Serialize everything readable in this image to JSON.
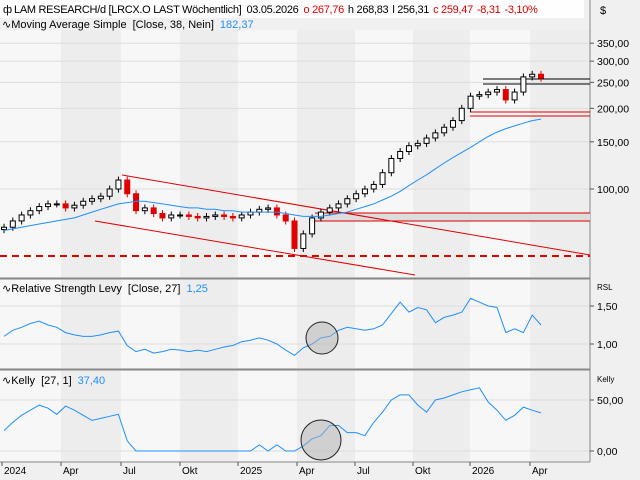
{
  "header": {
    "instrument": "LAM RESEARCH/d [LRCX.O LAST Wöchentlich]",
    "date": "03.05.2026",
    "open": "o 267,76",
    "high": "h 268,83",
    "low": "l 256,31",
    "close": "c 259,47",
    "change": "-8,31",
    "change_pct": "-3,10%",
    "currency": "$"
  },
  "colors": {
    "up": "#000000",
    "down": "#e00000",
    "line": "#1e90ff",
    "annotation": "#e00000"
  },
  "chart_data": [
    {
      "type": "candlestick",
      "panel": "price",
      "scale": "log",
      "title": "LAM RESEARCH/d [LRCX.O LAST Wöchentlich]",
      "yticks": [
        "350,00",
        "300,00",
        "250,00",
        "200,00",
        "150,00",
        "100,00"
      ],
      "ytick_values": [
        350,
        300,
        250,
        200,
        150,
        100
      ],
      "xticks": [
        "2024",
        "Apr",
        "Jul",
        "Okt",
        "2025",
        "Apr",
        "Jul",
        "Okt",
        "2026",
        "Apr"
      ],
      "close": [
        72,
        76,
        80,
        83,
        86,
        88,
        88,
        85,
        87,
        90,
        92,
        94,
        100,
        108,
        96,
        83,
        85,
        81,
        78,
        80,
        80,
        79,
        78,
        79,
        80,
        79,
        78,
        80,
        82,
        84,
        85,
        80,
        76,
        60,
        68,
        78,
        82,
        85,
        88,
        92,
        96,
        100,
        104,
        115,
        130,
        138,
        145,
        148,
        155,
        162,
        170,
        180,
        200,
        222,
        225,
        230,
        235,
        215,
        230,
        262,
        268,
        259.47
      ],
      "series": [
        {
          "name": "Moving Average Simple [Close, 38, Nein]",
          "label": "Moving Average Simple",
          "params": "[Close, 38, Nein]",
          "last": "182,37",
          "values": [
            70,
            71,
            72,
            73,
            74,
            75,
            76,
            77,
            78,
            80,
            82,
            84,
            86,
            88,
            89,
            90,
            90,
            89,
            88,
            87,
            86,
            85,
            85,
            84,
            84,
            83,
            83,
            82,
            82,
            82,
            82,
            82,
            81,
            80,
            79,
            79,
            79,
            80,
            81,
            82,
            84,
            86,
            88,
            91,
            94,
            98,
            103,
            108,
            113,
            119,
            125,
            131,
            137,
            143,
            150,
            157,
            163,
            168,
            172,
            176,
            180,
            182.37
          ]
        }
      ]
    },
    {
      "type": "line",
      "panel": "rsl",
      "axis_label": "RSL",
      "yticks": [
        "1,50",
        "1,00"
      ],
      "ytick_values": [
        1.5,
        1.0
      ],
      "series": [
        {
          "label": "Relative Strength Levy",
          "params": "[Close, 27]",
          "last": "1,25",
          "values": [
            1.1,
            1.18,
            1.22,
            1.27,
            1.3,
            1.25,
            1.22,
            1.15,
            1.12,
            1.1,
            1.1,
            1.12,
            1.15,
            1.17,
            0.98,
            0.9,
            0.93,
            0.88,
            0.9,
            0.93,
            0.92,
            0.9,
            0.92,
            0.9,
            0.93,
            0.96,
            0.98,
            1.03,
            1.05,
            1.08,
            1.05,
            1.0,
            0.92,
            0.85,
            0.95,
            1.0,
            1.08,
            1.1,
            1.18,
            1.22,
            1.2,
            1.18,
            1.2,
            1.25,
            1.4,
            1.55,
            1.42,
            1.48,
            1.45,
            1.28,
            1.35,
            1.38,
            1.42,
            1.6,
            1.55,
            1.5,
            1.48,
            1.15,
            1.2,
            1.15,
            1.38,
            1.25
          ]
        }
      ]
    },
    {
      "type": "line",
      "panel": "kelly",
      "axis_label": "Kelly",
      "yticks": [
        "50,00",
        "0,00"
      ],
      "ytick_values": [
        50,
        0
      ],
      "series": [
        {
          "label": "Kelly",
          "params": "[27, 1]",
          "last": "37,40",
          "values": [
            20,
            28,
            35,
            40,
            45,
            42,
            36,
            44,
            40,
            35,
            30,
            32,
            34,
            36,
            10,
            0,
            0,
            0,
            0,
            0,
            0,
            0,
            0,
            0,
            0,
            0,
            0,
            0,
            0,
            6,
            0,
            6,
            0,
            0,
            5,
            12,
            15,
            25,
            25,
            18,
            18,
            15,
            28,
            38,
            50,
            55,
            55,
            45,
            38,
            50,
            52,
            55,
            58,
            60,
            62,
            48,
            40,
            30,
            35,
            43,
            40,
            37.4
          ]
        }
      ]
    }
  ]
}
